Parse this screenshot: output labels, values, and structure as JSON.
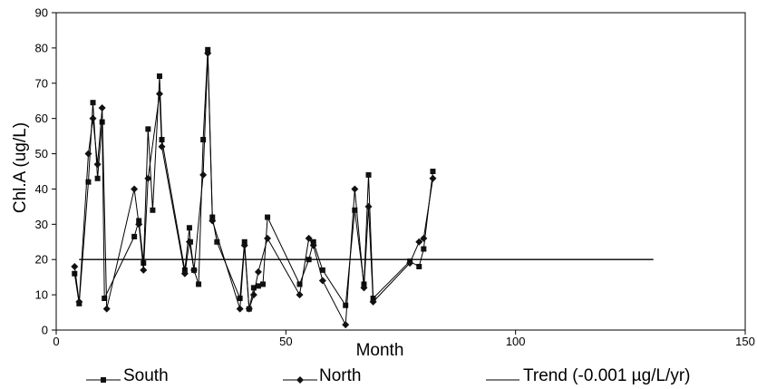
{
  "chart_data": {
    "type": "line",
    "title": "",
    "xlabel": "Month",
    "ylabel": "Chl.A (ug/L)",
    "xlim": [
      0,
      150
    ],
    "ylim": [
      0,
      90
    ],
    "xticks": [
      0,
      50,
      100,
      150
    ],
    "yticks": [
      0,
      10,
      20,
      30,
      40,
      50,
      60,
      70,
      80,
      90
    ],
    "grid": false,
    "legend_position": "bottom",
    "series": [
      {
        "name": "South",
        "marker": "square",
        "color": "#000000",
        "x": [
          4,
          5,
          7,
          8,
          9,
          10,
          10.5,
          17,
          18,
          19,
          20,
          21,
          22.5,
          23,
          28,
          29,
          29.2,
          30,
          31,
          32,
          33,
          34,
          35,
          40,
          41,
          42,
          43,
          44,
          45,
          46,
          53,
          55,
          56,
          58,
          63,
          65,
          67,
          68,
          69,
          77,
          79,
          80,
          82
        ],
        "y": [
          16,
          7.5,
          42,
          64.5,
          43,
          59,
          9,
          26.5,
          31,
          19,
          57,
          34,
          72,
          54,
          17,
          29,
          25,
          17,
          13,
          54,
          79.5,
          32,
          25,
          9,
          25,
          6,
          12,
          12.5,
          13,
          32,
          13,
          20,
          25,
          17,
          7,
          34,
          13,
          44,
          9,
          19.5,
          18,
          23,
          45
        ]
      },
      {
        "name": "North",
        "marker": "diamond",
        "color": "#000000",
        "x": [
          4,
          5,
          7,
          8,
          9,
          10,
          11,
          17,
          18,
          19,
          20,
          22.5,
          23,
          28,
          29,
          30,
          32,
          33,
          34,
          40,
          41,
          42,
          43,
          44,
          46,
          53,
          55,
          56,
          58,
          63,
          65,
          67,
          68,
          69,
          77,
          79,
          80,
          82
        ],
        "y": [
          18,
          8,
          50,
          60,
          47,
          63,
          6,
          40,
          30,
          17,
          43,
          67,
          52,
          16,
          25,
          17,
          44,
          78.5,
          31,
          6,
          24,
          6,
          10,
          16.5,
          26,
          10,
          26,
          24,
          14,
          1.5,
          40,
          12,
          35,
          8,
          19,
          25,
          26,
          43
        ]
      },
      {
        "name": "Trend (-0.001 µg/L/yr)",
        "marker": "none",
        "color": "#000000",
        "x": [
          5,
          130
        ],
        "y": [
          20,
          20
        ]
      }
    ]
  }
}
